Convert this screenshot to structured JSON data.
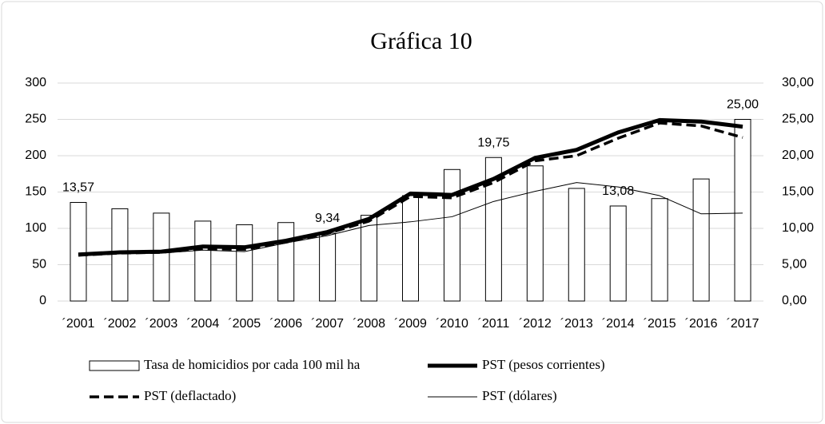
{
  "chart_data": {
    "type": "combo",
    "title": "Gráfica 10",
    "categories": [
      "´2001",
      "´2002",
      "´2003",
      "´2004",
      "´2005",
      "´2006",
      "´2007",
      "´2008",
      "´2009",
      "´2010",
      "´2011",
      "´2012",
      "´2013",
      "´2014",
      "´2015",
      "´2016",
      "´2017"
    ],
    "series": [
      {
        "name": "Tasa de homicidios por cada 100 mil ha",
        "type": "bar",
        "axis": "y2",
        "color": "#ffffff",
        "values": [
          13.57,
          12.7,
          12.1,
          11.0,
          10.5,
          10.8,
          9.34,
          11.8,
          14.5,
          18.1,
          19.75,
          18.6,
          15.5,
          13.08,
          14.1,
          16.8,
          25.0
        ],
        "value_labels": [
          "13,57",
          null,
          null,
          null,
          null,
          null,
          "9,34",
          null,
          null,
          null,
          "19,75",
          null,
          null,
          "13,08",
          null,
          null,
          "25,00"
        ]
      },
      {
        "name": "PST (pesos corrientes)",
        "type": "line",
        "color": "#000000",
        "width": 5,
        "dashed": false,
        "values": [
          64,
          67,
          68,
          75,
          74,
          83,
          95,
          113,
          148,
          146,
          168,
          197,
          208,
          232,
          249,
          247,
          240
        ]
      },
      {
        "name": "PST (deflactado)",
        "type": "line",
        "color": "#000000",
        "width": 3.5,
        "dashed": true,
        "values": [
          63,
          66,
          67,
          72,
          71,
          81,
          93,
          110,
          144,
          142,
          163,
          193,
          200,
          224,
          245,
          241,
          225
        ]
      },
      {
        "name": "PST (dólares)",
        "type": "line",
        "color": "#000000",
        "width": 1,
        "dashed": false,
        "values": [
          65,
          65,
          66,
          70,
          68,
          80,
          90,
          104,
          109,
          116,
          137,
          151,
          163,
          157,
          145,
          120,
          121
        ]
      }
    ],
    "ylim": [
      0,
      300
    ],
    "yticks": [
      0,
      50,
      100,
      150,
      200,
      250,
      300
    ],
    "y2lim": [
      0,
      30
    ],
    "y2ticks": [
      {
        "value": 0,
        "label": "0,00"
      },
      {
        "value": 5,
        "label": "5,00"
      },
      {
        "value": 10,
        "label": "10,00"
      },
      {
        "value": 15,
        "label": "15,00"
      },
      {
        "value": 20,
        "label": "20,00"
      },
      {
        "value": 25,
        "label": "25,00"
      },
      {
        "value": 30,
        "label": "30,00"
      }
    ],
    "grid": true
  }
}
